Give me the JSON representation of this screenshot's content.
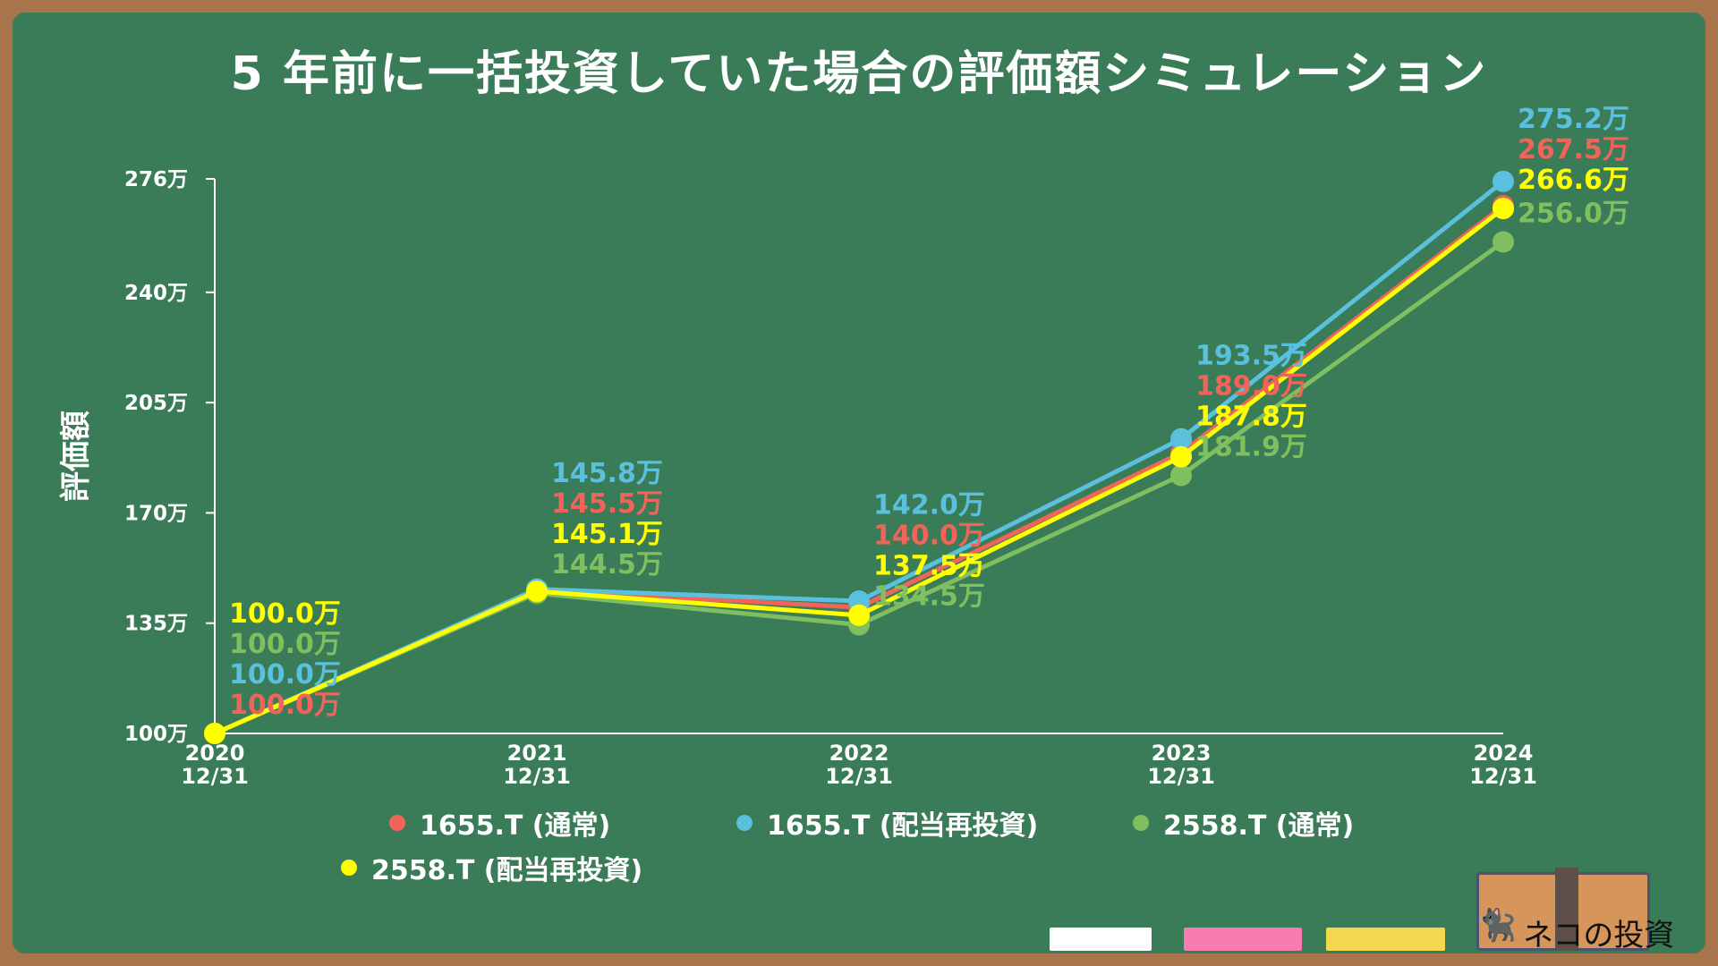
{
  "title": "5 年前に一括投資していた場合の評価額シミュレーション",
  "chart_data": {
    "type": "line",
    "title": "5 年前に一括投資していた場合の評価額シミュレーション",
    "ylabel": "評価額",
    "xlabel": "",
    "categories": [
      "2020\n12/31",
      "2021\n12/31",
      "2022\n12/31",
      "2023\n12/31",
      "2024\n12/31"
    ],
    "ylim": [
      100,
      276
    ],
    "yticks": [
      100,
      135,
      170,
      205,
      240,
      276
    ],
    "ytick_labels": [
      "100万",
      "135万",
      "170万",
      "205万",
      "240万",
      "276万"
    ],
    "unit_suffix": "万",
    "grid": false,
    "legend_position": "bottom",
    "series": [
      {
        "name": "1655.T (通常)",
        "color": "#f0645a",
        "values": [
          100.0,
          145.5,
          140.0,
          189.0,
          267.5
        ]
      },
      {
        "name": "1655.T (配当再投資)",
        "color": "#5bc0de",
        "values": [
          100.0,
          145.8,
          142.0,
          193.5,
          275.2
        ]
      },
      {
        "name": "2558.T (通常)",
        "color": "#7fbf60",
        "values": [
          100.0,
          144.5,
          134.5,
          181.9,
          256.0
        ]
      },
      {
        "name": "2558.T (配当再投資)",
        "color": "#ffff00",
        "values": [
          100.0,
          145.1,
          137.5,
          187.8,
          266.6
        ]
      }
    ]
  },
  "logo_text": "ネコの投資",
  "colors": {
    "background": "#3a7b58",
    "frame": "#a8744c",
    "text": "#ffffff"
  }
}
